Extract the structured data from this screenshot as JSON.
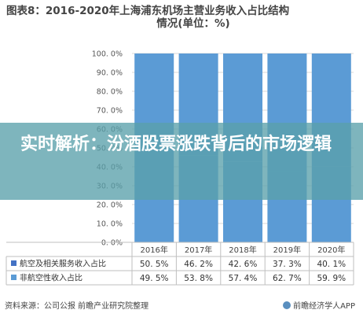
{
  "chart_data": {
    "type": "bar",
    "title_line1": "图表8：2016-2020年上海浦东机场主营业务收入占比结构",
    "title_line2": "情况(单位：%)",
    "categories": [
      "2016年",
      "2017年",
      "2018年",
      "2019年",
      "2020年"
    ],
    "y_ticks": [
      "0. 0%",
      "10. 0%",
      "20. 0%",
      "30. 0%",
      "40. 0%",
      "50. 0%",
      "60. 0%",
      "70. 0%",
      "80. 0%",
      "90. 0%",
      "100. 0%"
    ],
    "ylim": [
      0,
      100
    ],
    "stacked": true,
    "series": [
      {
        "name": "航空及相关服务收入占比",
        "values": [
          50.5,
          46.2,
          42.6,
          37.3,
          40.1
        ],
        "labels": [
          "50. 5%",
          "46. 2%",
          "42. 6%",
          "37. 3%",
          "40. 1%"
        ],
        "color": "#4472c4"
      },
      {
        "name": "非航空性收入占比",
        "values": [
          49.5,
          53.8,
          57.4,
          62.7,
          59.9
        ],
        "labels": [
          "49. 5%",
          "53. 8%",
          "57. 4%",
          "62. 7%",
          "59. 9%"
        ],
        "color": "#5b9bd5"
      }
    ],
    "grid": true,
    "legend": "table-below"
  },
  "overlay": {
    "headline": "实时解析：汾酒股票涨跌背后的市场逻辑"
  },
  "footer": {
    "source": "资料来源：公司公报 前瞻产业研究院整理",
    "brand": "前瞻经济学人APP"
  },
  "colors": {
    "bar": "#5b9bd5",
    "overlay": "#5aa0aa"
  }
}
